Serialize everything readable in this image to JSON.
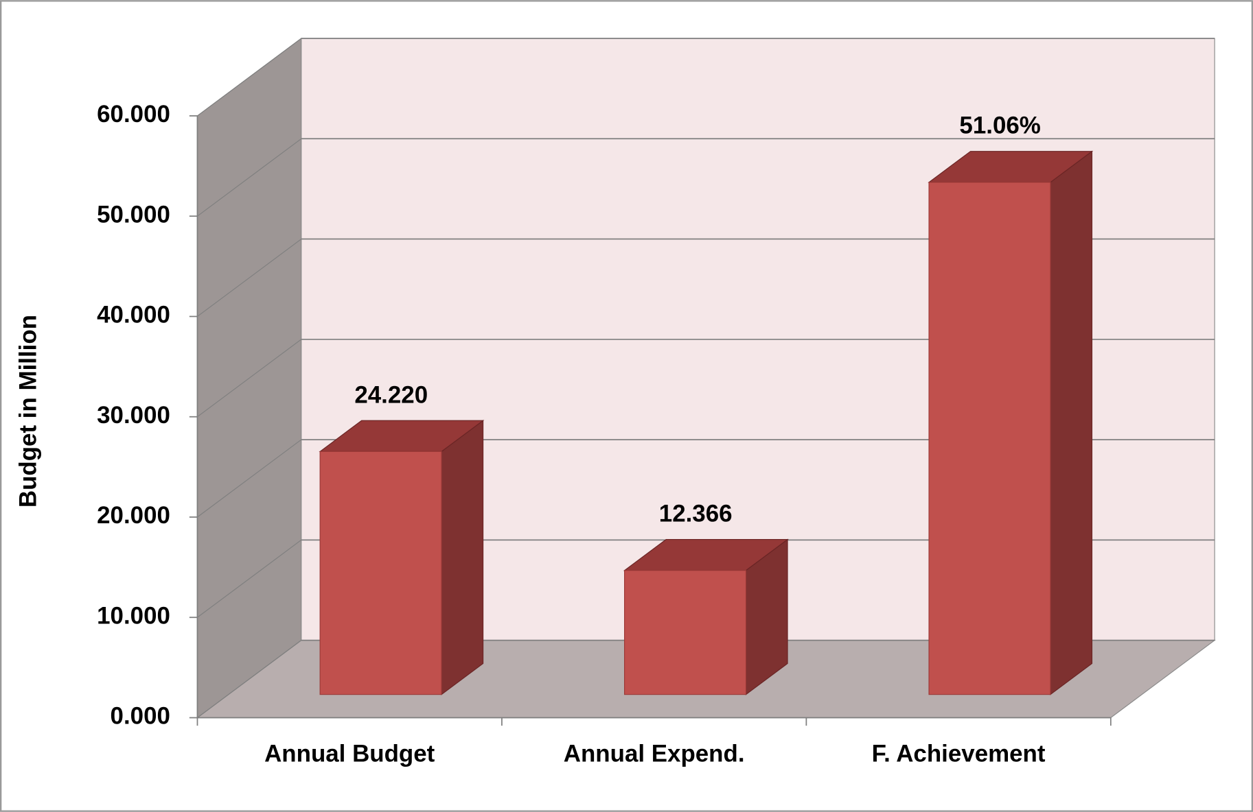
{
  "chart_data": {
    "type": "bar3d",
    "y_label": "Budget in Million",
    "categories": [
      "Annual Budget",
      "Annual Expend.",
      "F. Achievement"
    ],
    "values": [
      24.22,
      12.366,
      51.06
    ],
    "value_labels": [
      "24.220",
      "12.366",
      "51.06%"
    ],
    "color": "#c0504d",
    "ylim": [
      0,
      60
    ],
    "yticks": [
      {
        "value": 0,
        "label": "0.000"
      },
      {
        "value": 10,
        "label": "10.000"
      },
      {
        "value": 20,
        "label": "20.000"
      },
      {
        "value": 30,
        "label": "30.000"
      },
      {
        "value": 40,
        "label": "40.000"
      },
      {
        "value": 50,
        "label": "50.000"
      },
      {
        "value": 60,
        "label": "60.000"
      }
    ],
    "grid": true
  }
}
